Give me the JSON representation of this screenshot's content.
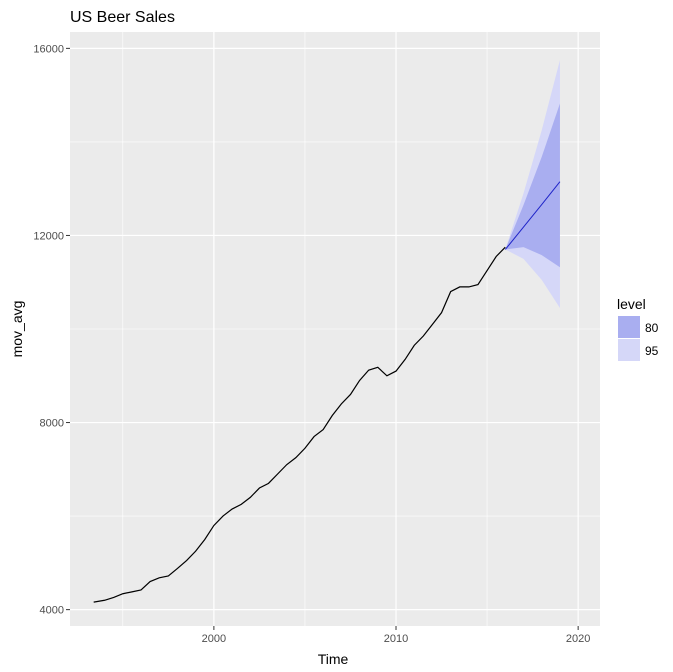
{
  "chart_data": {
    "type": "line",
    "title": "US Beer Sales",
    "xlabel": "Time",
    "ylabel": "mov_avg",
    "xlim": [
      1992.1,
      2021.2
    ],
    "ylim": [
      3650,
      16350
    ],
    "x_ticks": [
      2000,
      2010,
      2020
    ],
    "x_tick_labels": [
      "2000",
      "2010",
      "2020"
    ],
    "y_ticks": [
      4000,
      8000,
      12000,
      16000
    ],
    "y_tick_labels": [
      "4000",
      "8000",
      "12000",
      "16000"
    ],
    "grid": true,
    "legend_position": "right",
    "legend": {
      "title": "level",
      "items": [
        {
          "label": "80",
          "color": "#a9aef0"
        },
        {
          "label": "95",
          "color": "#d5d7f8"
        }
      ]
    },
    "colors": {
      "panel": "#ebebeb",
      "grid": "#ffffff",
      "history_line": "#000000",
      "forecast_line": "#1f24c8",
      "band_80": "#a9aef0",
      "band_95": "#d5d7f8"
    },
    "history": {
      "name": "mov_avg",
      "x": [
        1993.4,
        1994.0,
        1994.5,
        1995.0,
        1995.5,
        1996.0,
        1996.5,
        1997.0,
        1997.5,
        1998.0,
        1998.5,
        1999.0,
        1999.5,
        2000.0,
        2000.5,
        2001.0,
        2001.5,
        2002.0,
        2002.5,
        2003.0,
        2003.5,
        2004.0,
        2004.5,
        2005.0,
        2005.5,
        2006.0,
        2006.5,
        2007.0,
        2007.5,
        2008.0,
        2008.5,
        2009.0,
        2009.5,
        2010.0,
        2010.5,
        2011.0,
        2011.5,
        2012.0,
        2012.5,
        2013.0,
        2013.5,
        2014.0,
        2014.5,
        2015.0,
        2015.5,
        2016.0
      ],
      "y": [
        4160,
        4200,
        4260,
        4340,
        4380,
        4420,
        4600,
        4680,
        4720,
        4880,
        5050,
        5250,
        5500,
        5800,
        6000,
        6150,
        6250,
        6400,
        6600,
        6700,
        6900,
        7100,
        7250,
        7450,
        7700,
        7850,
        8150,
        8400,
        8600,
        8900,
        9120,
        9180,
        9000,
        9100,
        9350,
        9650,
        9850,
        10100,
        10350,
        10800,
        10900,
        10900,
        10950,
        11250,
        11550,
        11750
      ]
    },
    "forecast": {
      "x": [
        2016.0,
        2017.0,
        2018.0,
        2019.0
      ],
      "mean": [
        11700,
        12180,
        12660,
        13150
      ],
      "lower_80": [
        11700,
        11750,
        11580,
        11320
      ],
      "upper_80": [
        11700,
        12650,
        13680,
        14820
      ],
      "lower_95": [
        11700,
        11500,
        11050,
        10450
      ],
      "upper_95": [
        11700,
        12900,
        14250,
        15750
      ]
    }
  }
}
